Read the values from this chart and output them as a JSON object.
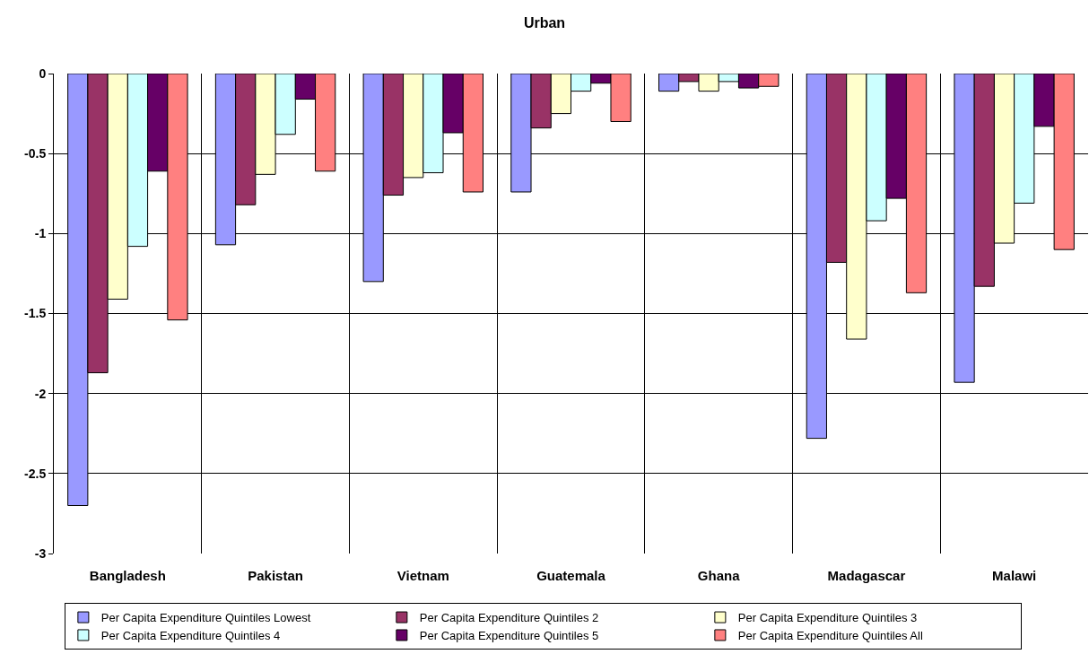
{
  "chart_data": {
    "type": "bar",
    "title": "Urban",
    "categories": [
      "Bangladesh",
      "Pakistan",
      "Vietnam",
      "Guatemala",
      "Ghana",
      "Madagascar",
      "Malawi"
    ],
    "series": [
      {
        "name": "Per Capita Expenditure Quintiles Lowest",
        "color": "#9999ff",
        "values": [
          -2.7,
          -1.07,
          -1.3,
          -0.74,
          -0.11,
          -2.28,
          -1.93
        ]
      },
      {
        "name": "Per Capita Expenditure Quintiles 2",
        "color": "#993366",
        "values": [
          -1.87,
          -0.82,
          -0.76,
          -0.34,
          -0.05,
          -1.18,
          -1.33
        ]
      },
      {
        "name": "Per Capita Expenditure Quintiles 3",
        "color": "#ffffcc",
        "values": [
          -1.41,
          -0.63,
          -0.65,
          -0.25,
          -0.11,
          -1.66,
          -1.06
        ]
      },
      {
        "name": "Per Capita Expenditure Quintiles 4",
        "color": "#ccffff",
        "values": [
          -1.08,
          -0.38,
          -0.62,
          -0.11,
          -0.05,
          -0.92,
          -0.81
        ]
      },
      {
        "name": "Per Capita Expenditure Quintiles 5",
        "color": "#660066",
        "values": [
          -0.61,
          -0.16,
          -0.37,
          -0.06,
          -0.09,
          -0.78,
          -0.33
        ]
      },
      {
        "name": "Per Capita Expenditure Quintiles All",
        "color": "#ff8080",
        "values": [
          -1.54,
          -0.61,
          -0.74,
          -0.3,
          -0.08,
          -1.37,
          -1.1
        ]
      }
    ],
    "ylim": [
      -3,
      0
    ],
    "yticks": [
      0,
      -0.5,
      -1,
      -1.5,
      -2,
      -2.5,
      -3
    ],
    "grid": true,
    "legend": "bottom"
  }
}
